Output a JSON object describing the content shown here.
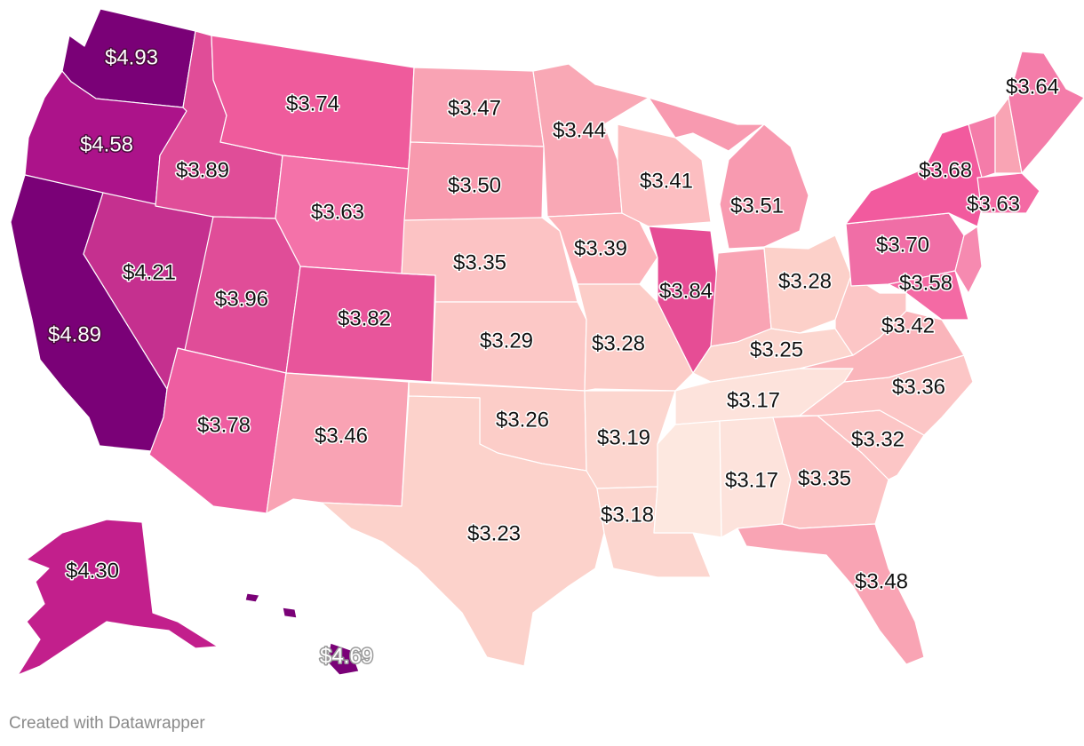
{
  "credit": "Created with Datawrapper",
  "color_scale": {
    "low": "#fde8e0",
    "mid_low": "#fbd4cd",
    "mid": "#f9a4b4",
    "mid_high": "#ef5b9c",
    "high": "#c21f8c",
    "max": "#7a0177"
  },
  "states": [
    {
      "id": "WA",
      "price": "$4.93"
    },
    {
      "id": "OR",
      "price": "$4.58"
    },
    {
      "id": "CA",
      "price": "$4.89"
    },
    {
      "id": "NV",
      "price": "$4.21"
    },
    {
      "id": "ID",
      "price": "$3.89"
    },
    {
      "id": "MT",
      "price": "$3.74"
    },
    {
      "id": "WY",
      "price": "$3.63"
    },
    {
      "id": "UT",
      "price": "$3.96"
    },
    {
      "id": "CO",
      "price": "$3.82"
    },
    {
      "id": "AZ",
      "price": "$3.78"
    },
    {
      "id": "NM",
      "price": "$3.46"
    },
    {
      "id": "ND",
      "price": "$3.47"
    },
    {
      "id": "SD",
      "price": "$3.50"
    },
    {
      "id": "NE",
      "price": "$3.35"
    },
    {
      "id": "KS",
      "price": "$3.29"
    },
    {
      "id": "OK",
      "price": "$3.26"
    },
    {
      "id": "TX",
      "price": "$3.23"
    },
    {
      "id": "MN",
      "price": "$3.44"
    },
    {
      "id": "IA",
      "price": "$3.39"
    },
    {
      "id": "MO",
      "price": "$3.28"
    },
    {
      "id": "AR",
      "price": "$3.19"
    },
    {
      "id": "LA",
      "price": "$3.18"
    },
    {
      "id": "WI",
      "price": "$3.41"
    },
    {
      "id": "IL",
      "price": "$3.84"
    },
    {
      "id": "MI",
      "price": "$3.51"
    },
    {
      "id": "IN",
      "price": ""
    },
    {
      "id": "OH",
      "price": "$3.28"
    },
    {
      "id": "KY",
      "price": "$3.25"
    },
    {
      "id": "TN",
      "price": "$3.17"
    },
    {
      "id": "MS",
      "price": ""
    },
    {
      "id": "AL",
      "price": "$3.17"
    },
    {
      "id": "GA",
      "price": "$3.35"
    },
    {
      "id": "FL",
      "price": "$3.48"
    },
    {
      "id": "SC",
      "price": "$3.32"
    },
    {
      "id": "NC",
      "price": "$3.36"
    },
    {
      "id": "VA",
      "price": "$3.42"
    },
    {
      "id": "WV",
      "price": ""
    },
    {
      "id": "PA",
      "price": "$3.70"
    },
    {
      "id": "NY",
      "price": "$3.68"
    },
    {
      "id": "MD",
      "price": "$3.58"
    },
    {
      "id": "NJ",
      "price": ""
    },
    {
      "id": "MA",
      "price": "$3.63"
    },
    {
      "id": "VT",
      "price": ""
    },
    {
      "id": "NH",
      "price": ""
    },
    {
      "id": "ME",
      "price": "$3.64"
    },
    {
      "id": "AK",
      "price": "$4.30"
    },
    {
      "id": "HI",
      "price": "$4.69"
    }
  ]
}
